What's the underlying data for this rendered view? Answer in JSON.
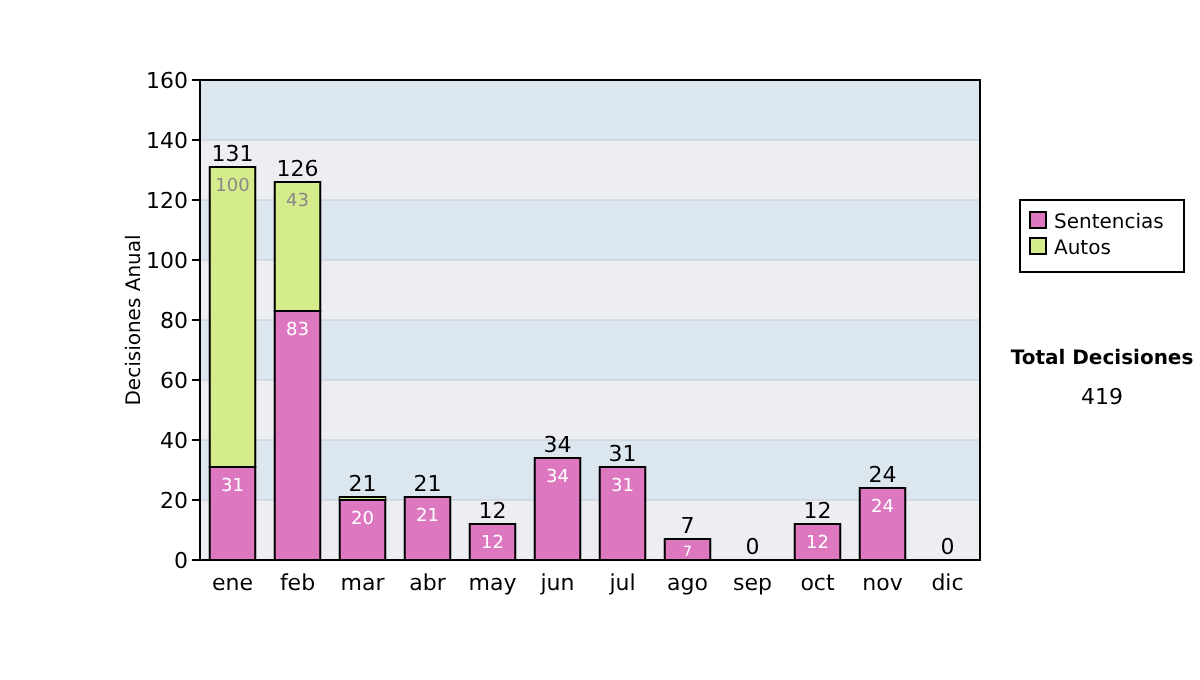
{
  "chart_data": {
    "type": "bar",
    "stacked": true,
    "ylabel": "Decisiones Anual",
    "categories": [
      "ene",
      "feb",
      "mar",
      "abr",
      "may",
      "jun",
      "jul",
      "ago",
      "sep",
      "oct",
      "nov",
      "dic"
    ],
    "series": [
      {
        "name": "Sentencias",
        "color": "#dd77c0",
        "values": [
          31,
          83,
          20,
          21,
          12,
          34,
          31,
          7,
          0,
          12,
          24,
          0
        ],
        "value_labels": [
          "31",
          "83",
          "20",
          "21",
          "12",
          "34",
          "31",
          "7",
          null,
          "12",
          "24",
          null
        ]
      },
      {
        "name": "Autos",
        "color": "#d4ec8c",
        "values": [
          100,
          43,
          1,
          0,
          0,
          0,
          0,
          0,
          0,
          0,
          0,
          0
        ],
        "value_labels": [
          "100",
          "43",
          null,
          null,
          null,
          null,
          null,
          null,
          null,
          null,
          null,
          null
        ]
      }
    ],
    "totals": [
      "131",
      "126",
      "21",
      "21",
      "12",
      "34",
      "31",
      "7",
      "0",
      "12",
      "24",
      "0"
    ],
    "ylim": [
      0,
      160
    ],
    "yticks": [
      0,
      20,
      40,
      60,
      80,
      100,
      120,
      140,
      160
    ],
    "grid": "y",
    "legend": "right",
    "annotations": [
      "Total Decisiones",
      "419"
    ]
  }
}
